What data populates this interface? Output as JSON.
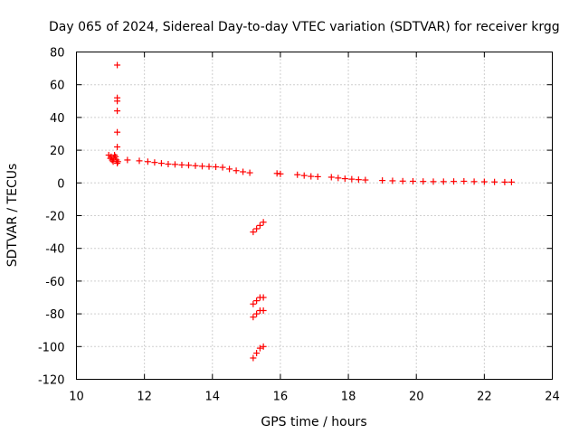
{
  "chart_data": {
    "type": "scatter",
    "title": "Day 065 of 2024, Sidereal Day-to-day VTEC variation (SDTVAR) for receiver krgg",
    "xlabel": "GPS time / hours",
    "ylabel": "SDTVAR / TECUs",
    "xlim": [
      10,
      24
    ],
    "ylim": [
      -120,
      80
    ],
    "xticks": [
      10,
      12,
      14,
      16,
      18,
      20,
      22,
      24
    ],
    "yticks": [
      -120,
      -100,
      -80,
      -60,
      -40,
      -20,
      0,
      20,
      40,
      60,
      80
    ],
    "grid": true,
    "marker": "+",
    "color": "#ff0000",
    "series": [
      {
        "name": "SDTVAR",
        "x": [
          10.95,
          11.0,
          11.02,
          11.05,
          11.08,
          11.1,
          11.12,
          11.15,
          11.18,
          11.2,
          11.22,
          11.2,
          11.2,
          11.2,
          11.2,
          11.2,
          11.2,
          11.5,
          11.85,
          12.1,
          12.3,
          12.5,
          12.7,
          12.9,
          13.1,
          13.3,
          13.5,
          13.7,
          13.9,
          14.1,
          14.3,
          14.5,
          14.7,
          14.9,
          15.1,
          15.9,
          16.0,
          16.5,
          16.7,
          16.9,
          17.1,
          17.5,
          17.7,
          17.9,
          18.1,
          18.3,
          18.5,
          19.0,
          19.3,
          19.6,
          19.9,
          20.2,
          20.5,
          20.8,
          21.1,
          21.4,
          21.7,
          22.0,
          22.3,
          22.6,
          22.8,
          15.2,
          15.3,
          15.4,
          15.5,
          15.2,
          15.3,
          15.4,
          15.5,
          15.2,
          15.3,
          15.4,
          15.5,
          15.2,
          15.3,
          15.4,
          15.5
        ],
        "y": [
          17,
          15,
          16,
          14,
          13,
          15,
          17,
          16,
          14,
          12,
          13,
          72,
          52,
          50,
          44,
          31,
          22,
          14,
          13.5,
          13,
          12.5,
          12,
          11.5,
          11.3,
          11.0,
          10.8,
          10.5,
          10.2,
          10.0,
          9.8,
          9.5,
          8.5,
          7.5,
          6.8,
          6.2,
          5.8,
          5.5,
          5.0,
          4.5,
          4.0,
          3.8,
          3.5,
          3.0,
          2.6,
          2.3,
          2.0,
          1.8,
          1.5,
          1.3,
          1.1,
          1.0,
          0.9,
          0.8,
          0.8,
          0.9,
          1.0,
          0.8,
          0.7,
          0.6,
          0.5,
          0.5,
          -30,
          -28,
          -26,
          -24,
          -74,
          -72,
          -70,
          -70,
          -82,
          -80,
          -78,
          -78,
          -107,
          -104,
          -101,
          -100
        ]
      }
    ]
  }
}
